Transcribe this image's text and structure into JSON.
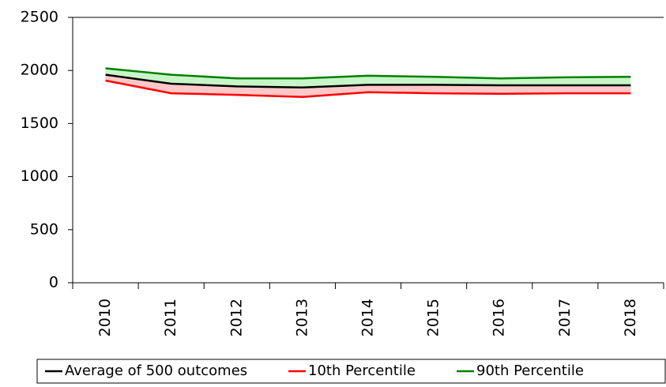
{
  "chart_data": {
    "type": "line",
    "categories": [
      "2010",
      "2011",
      "2012",
      "2013",
      "2014",
      "2015",
      "2016",
      "2017",
      "2018"
    ],
    "series": [
      {
        "name": "Average of 500 outcomes",
        "color": "#000000",
        "values": [
          1960,
          1875,
          1850,
          1840,
          1865,
          1865,
          1860,
          1860,
          1860
        ]
      },
      {
        "name": "10th Percentile",
        "color": "#ff0000",
        "values": [
          1905,
          1785,
          1770,
          1750,
          1795,
          1785,
          1780,
          1785,
          1785
        ]
      },
      {
        "name": "90th Percentile",
        "color": "#008000",
        "values": [
          2020,
          1960,
          1925,
          1925,
          1950,
          1940,
          1925,
          1935,
          1940
        ]
      }
    ],
    "ylim": [
      0,
      2500
    ],
    "yticks": [
      0,
      500,
      1000,
      1500,
      2000,
      2500
    ]
  }
}
